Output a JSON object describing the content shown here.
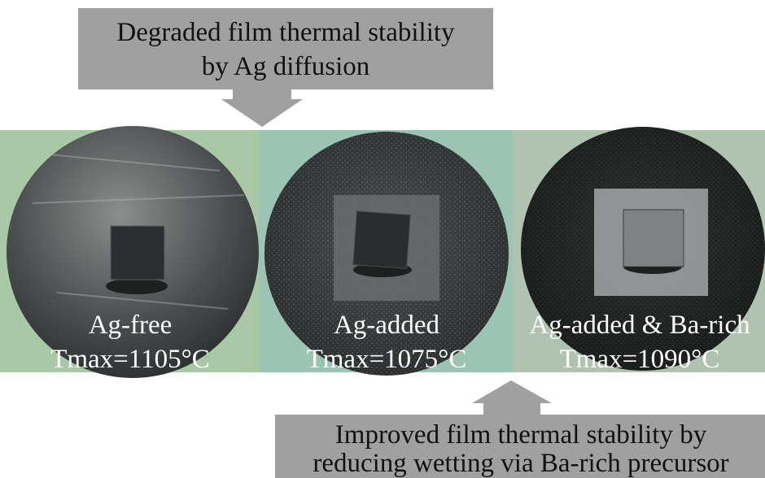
{
  "callouts": {
    "top": {
      "lines": [
        "Degraded film thermal stability",
        "by Ag diffusion"
      ]
    },
    "bottom": {
      "lines": [
        "Improved film thermal stability by",
        "reducing wetting via Ba-rich precursor"
      ]
    }
  },
  "panels": [
    {
      "label": "Ag-free",
      "tmax": "Tmax=1105°C"
    },
    {
      "label": "Ag-added",
      "tmax": "Tmax=1075°C"
    },
    {
      "label": "Ag-added & Ba-rich",
      "tmax": "Tmax=1090°C"
    }
  ]
}
